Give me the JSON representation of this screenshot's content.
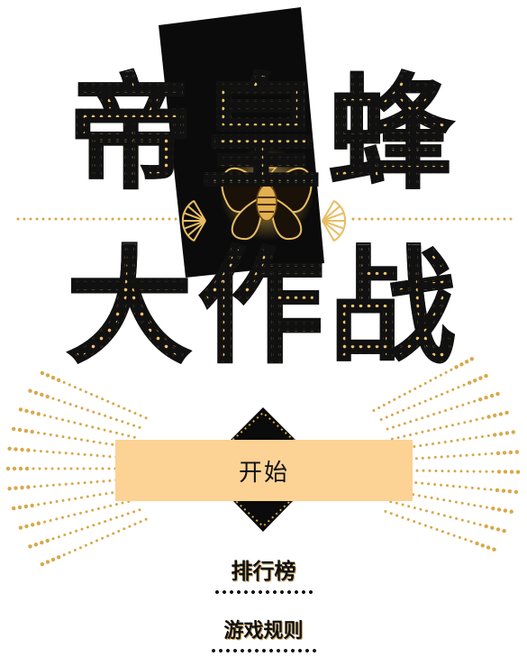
{
  "title": {
    "line1": "帝皇蜂",
    "line2": "大作战"
  },
  "start_button": {
    "label": "开始"
  },
  "menu": {
    "leaderboard": "排行榜",
    "rules": "游戏规则"
  },
  "colors": {
    "gold": "#d9a84a",
    "button_fill": "#fcd295",
    "ink": "#111111"
  },
  "icons": {
    "emblem": "bee-icon",
    "side_ornament": "fan-ornament"
  }
}
